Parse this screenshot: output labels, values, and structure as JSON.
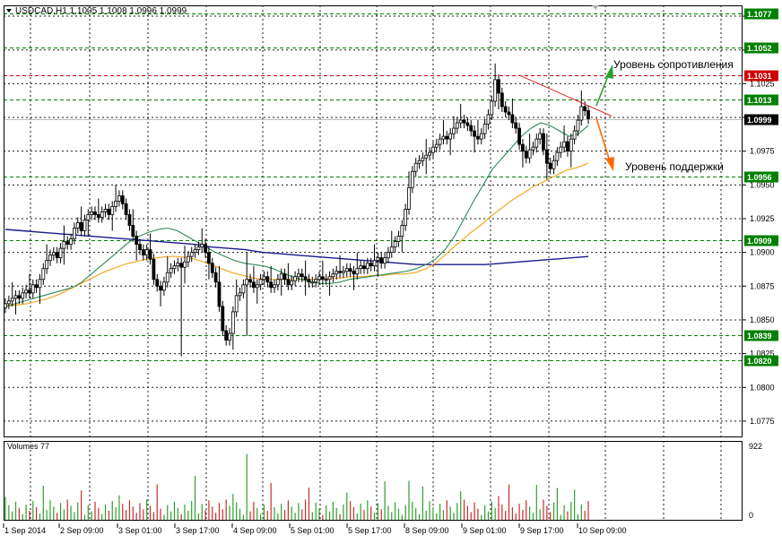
{
  "header": {
    "symbol_line": "USDCAD,H1  1.1005 1.1008 1.0996 1.0999"
  },
  "volumes_panel": {
    "label": "Volumes 77",
    "axis_max": "922",
    "axis_min": "0"
  },
  "annotations": {
    "resistance": "Уровень сопротивления",
    "support": "Уровень поддержки"
  },
  "colors": {
    "background": "#ffffff",
    "grid": "#000000",
    "candles": "#000000",
    "ma_fast": "#2e8b57",
    "ma_mid": "#f5a623",
    "ma_slow": "#1a1a8c",
    "resistance_line": "#e02020",
    "volume_up": "#2e9e2e",
    "volume_down": "#cc2a2a",
    "level_green": "#008000",
    "level_red": "#d00000",
    "arrow_up": "#2aa02a",
    "arrow_down": "#ff6a00"
  },
  "chart_data": {
    "type": "candlestick",
    "symbol": "USDCAD",
    "timeframe": "H1",
    "ylim": [
      1.0763,
      1.1083
    ],
    "y_ticks": [
      "1.0775",
      "1.0800",
      "1.0825",
      "1.0850",
      "1.0875",
      "1.0900",
      "1.0925",
      "1.0950",
      "1.0975",
      "1.1000",
      "1.1025",
      "1.1050",
      "1.1075"
    ],
    "x_ticks": [
      "1 Sep 2014",
      "2 Sep 09:00",
      "3 Sep 01:00",
      "3 Sep 17:00",
      "4 Sep 09:00",
      "5 Sep 01:00",
      "5 Sep 17:00",
      "8 Sep 09:00",
      "9 Sep 01:00",
      "9 Sep 17:00",
      "10 Sep 09:00"
    ],
    "levels": [
      {
        "price": "1.1077",
        "style": "green"
      },
      {
        "price": "1.1052",
        "style": "green"
      },
      {
        "price": "1.1031",
        "style": "red"
      },
      {
        "price": "1.1013",
        "style": "green"
      },
      {
        "price": "1.0999",
        "style": "current"
      },
      {
        "price": "1.0956",
        "style": "green"
      },
      {
        "price": "1.0909",
        "style": "green"
      },
      {
        "price": "1.0839",
        "style": "green"
      },
      {
        "price": "1.0820",
        "style": "green"
      }
    ],
    "close_series": [
      1.0862,
      1.0864,
      1.0866,
      1.0868,
      1.0866,
      1.087,
      1.0872,
      1.087,
      1.0876,
      1.0874,
      1.088,
      1.0888,
      1.0894,
      1.0898,
      1.09,
      1.0896,
      1.0903,
      1.0908,
      1.0906,
      1.091,
      1.0918,
      1.0922,
      1.0916,
      1.0924,
      1.0928,
      1.093,
      1.0928,
      1.0926,
      1.093,
      1.0932,
      1.0928,
      1.0934,
      1.0938,
      1.0942,
      1.0936,
      1.0928,
      1.092,
      1.0912,
      1.0906,
      1.0902,
      1.0898,
      1.0902,
      1.0895,
      1.088,
      1.0875,
      1.0872,
      1.0878,
      1.0885,
      1.0888,
      1.089,
      1.0892,
      1.0889,
      1.0893,
      1.0897,
      1.09,
      1.0902,
      1.0904,
      1.0906,
      1.09,
      1.0892,
      1.0885,
      1.0878,
      1.086,
      1.0842,
      1.0835,
      1.084,
      1.0856,
      1.0868,
      1.087,
      1.0876,
      1.088,
      1.0878,
      1.0874,
      1.0876,
      1.088,
      1.0882,
      1.0878,
      1.0874,
      1.0876,
      1.088,
      1.0884,
      1.088,
      1.0876,
      1.0879,
      1.0882,
      1.0884,
      1.0882,
      1.088,
      1.0878,
      1.0878,
      1.088,
      1.0882,
      1.088,
      1.088,
      1.0882,
      1.0884,
      1.0886,
      1.0885,
      1.0886,
      1.0888,
      1.0886,
      1.0884,
      1.0888,
      1.089,
      1.0888,
      1.0892,
      1.089,
      1.0894,
      1.0896,
      1.0892,
      1.0896,
      1.09,
      1.0904,
      1.0908,
      1.0912,
      1.092,
      1.0932,
      1.0948,
      1.096,
      1.0966,
      1.0968,
      1.097,
      1.0972,
      1.0974,
      1.0978,
      1.098,
      1.0984,
      1.0986,
      1.0984,
      1.0988,
      1.0992,
      1.0996,
      1.0998,
      1.0996,
      1.0994,
      1.099,
      1.0986,
      1.0984,
      1.0988,
      1.0995,
      1.1002,
      1.1012,
      1.1028,
      1.1018,
      1.1008,
      1.1004,
      1.1002,
      1.0996,
      1.0992,
      1.098,
      1.0975,
      1.097,
      1.0976,
      1.0978,
      1.0984,
      1.0988,
      1.0976,
      1.0966,
      1.0962,
      1.0968,
      1.0974,
      1.0978,
      1.0982,
      1.0975,
      1.0984,
      1.099,
      1.0998,
      1.1008,
      1.1005,
      1.0999
    ],
    "ma_fast": [
      1.086,
      1.0862,
      1.0864,
      1.0866,
      1.0868,
      1.087,
      1.0872,
      1.0874,
      1.0878,
      1.0884,
      1.089,
      1.0896,
      1.0902,
      1.0908,
      1.0912,
      1.0915,
      1.0917,
      1.0918,
      1.0916,
      1.0912,
      1.0908,
      1.0904,
      1.09,
      1.0897,
      1.0894,
      1.0892,
      1.0891,
      1.089,
      1.0888,
      1.0885,
      1.0882,
      1.088,
      1.0878,
      1.0877,
      1.0877,
      1.0878,
      1.088,
      1.0881,
      1.0882,
      1.0883,
      1.0884,
      1.0885,
      1.0886,
      1.0888,
      1.0891,
      1.0895,
      1.0902,
      1.0912,
      1.0925,
      1.0938,
      1.095,
      1.0962,
      1.097,
      1.0978,
      1.0986,
      1.0992,
      1.0996,
      1.0994,
      1.099,
      1.0986,
      1.0988,
      1.0994
    ],
    "ma_mid": [
      1.086,
      1.0861,
      1.0862,
      1.0864,
      1.0866,
      1.0869,
      1.0873,
      1.0877,
      1.0881,
      1.0885,
      1.0888,
      1.0891,
      1.0893,
      1.0895,
      1.0896,
      1.0897,
      1.0897,
      1.0896,
      1.0894,
      1.0891,
      1.0888,
      1.0885,
      1.0883,
      1.0881,
      1.088,
      1.088,
      1.088,
      1.088,
      1.088,
      1.088,
      1.0881,
      1.0881,
      1.0882,
      1.0882,
      1.0883,
      1.0883,
      1.0884,
      1.0884,
      1.0885,
      1.0888,
      1.0893,
      1.09,
      1.0907,
      1.0914,
      1.092,
      1.0927,
      1.0933,
      1.0939,
      1.0944,
      1.0949,
      1.0953,
      1.0957,
      1.0961,
      1.0963,
      1.0966
    ],
    "ma_slow": [
      1.0917,
      1.0916,
      1.0915,
      1.0914,
      1.0913,
      1.0912,
      1.0911,
      1.091,
      1.0909,
      1.0908,
      1.0907,
      1.0906,
      1.0904,
      1.0903,
      1.0902,
      1.09,
      1.0899,
      1.0898,
      1.0897,
      1.0896,
      1.0895,
      1.0894,
      1.0893,
      1.0892,
      1.0891,
      1.0891,
      1.0891,
      1.0891,
      1.0891,
      1.0892,
      1.0893,
      1.0894,
      1.0895,
      1.0896,
      1.0897
    ]
  }
}
